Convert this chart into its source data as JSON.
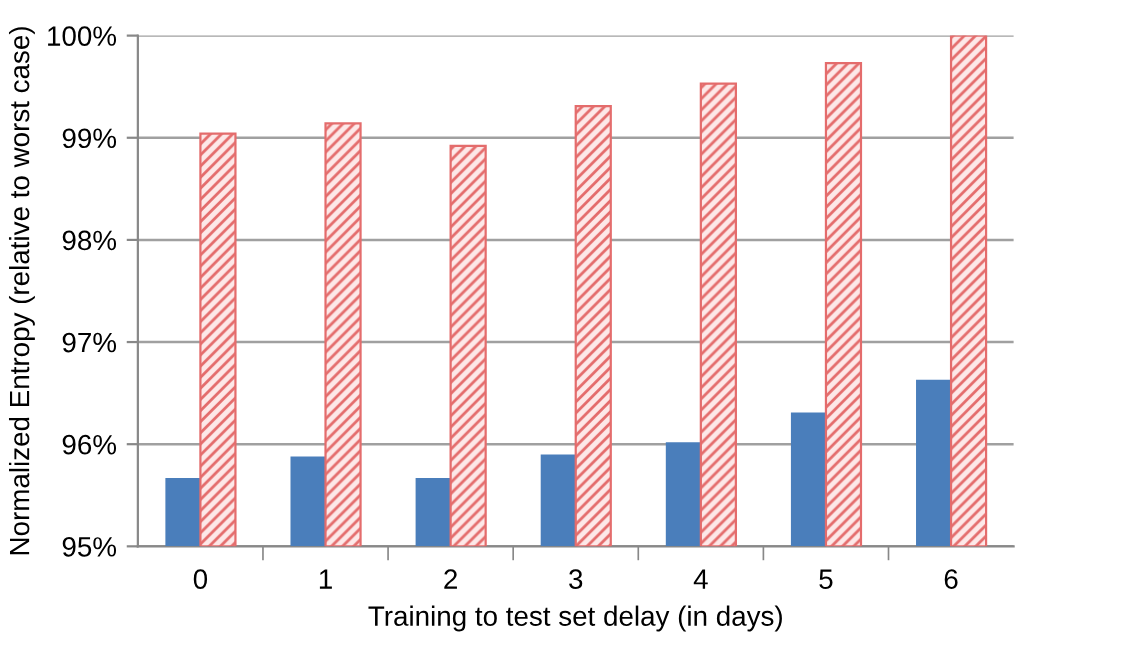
{
  "chart_data": {
    "type": "bar",
    "xlabel": "Training to test set delay (in days)",
    "ylabel": "Normalized Entropy (relative to worst case)",
    "categories": [
      "0",
      "1",
      "2",
      "3",
      "4",
      "5",
      "6"
    ],
    "series": [
      {
        "color": "#4a7ebb",
        "values": [
          95.67,
          95.88,
          95.67,
          95.9,
          96.02,
          96.31,
          96.63
        ]
      },
      {
        "color": "#e46c6c",
        "values": [
          99.04,
          99.14,
          98.92,
          99.31,
          99.53,
          99.73,
          100
        ]
      }
    ],
    "ylim": [
      95,
      100
    ],
    "yticks": [
      {
        "value": 95,
        "label": "95%"
      },
      {
        "value": 96,
        "label": "96%"
      },
      {
        "value": 97,
        "label": "97%"
      },
      {
        "value": 98,
        "label": "98%"
      },
      {
        "value": 99,
        "label": "99%"
      },
      {
        "value": 100,
        "label": "100%"
      }
    ],
    "grid": "y",
    "legend": false
  }
}
